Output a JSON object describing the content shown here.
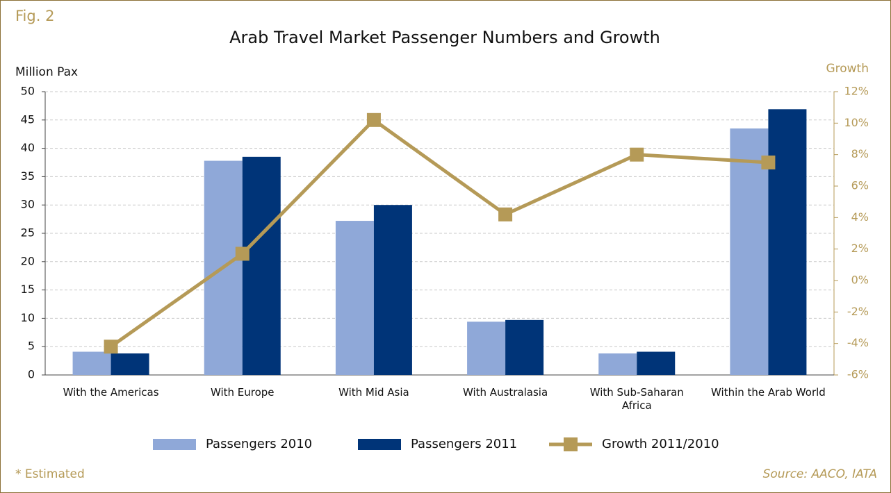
{
  "chart_data": {
    "type": "bar",
    "figure_label": "Fig. 2",
    "title": "Arab Travel Market Passenger Numbers and Growth",
    "y_label": "Million Pax",
    "y2_label": "Growth",
    "categories": [
      "With the Americas",
      "With Europe",
      "With Mid Asia",
      "With Australasia",
      "With Sub-Saharan Africa",
      "Within the Arab World"
    ],
    "series": [
      {
        "name": "Passengers 2010",
        "color": "#8fa8d8",
        "values": [
          4.1,
          37.8,
          27.2,
          9.4,
          3.8,
          43.5
        ]
      },
      {
        "name": "Passengers 2011",
        "color": "#003478",
        "values": [
          3.8,
          38.5,
          30,
          9.7,
          4.1,
          46.9
        ]
      },
      {
        "name": "Growth 2011/2010",
        "color": "#b59a57",
        "type": "line",
        "axis": "y2",
        "values": [
          -4.2,
          1.7,
          10.2,
          4.2,
          8.0,
          7.5
        ]
      }
    ],
    "ylim": [
      0,
      50
    ],
    "yticks": [
      0,
      5,
      10,
      15,
      20,
      25,
      30,
      35,
      40,
      45,
      50
    ],
    "y2lim": [
      -6,
      12
    ],
    "y2ticks": [
      {
        "value": -6,
        "label": "-6%"
      },
      {
        "value": -4,
        "label": "-4%"
      },
      {
        "value": -2,
        "label": "-2%"
      },
      {
        "value": 0,
        "label": "0%"
      },
      {
        "value": 2,
        "label": "2%"
      },
      {
        "value": 4,
        "label": "4%"
      },
      {
        "value": 6,
        "label": "6%"
      },
      {
        "value": 8,
        "label": "8%"
      },
      {
        "value": 10,
        "label": "10%"
      },
      {
        "value": 12,
        "label": "12%"
      }
    ],
    "grid": true,
    "legend": "bottom",
    "footnote": "* Estimated",
    "source": "Source: AACO, IATA"
  }
}
